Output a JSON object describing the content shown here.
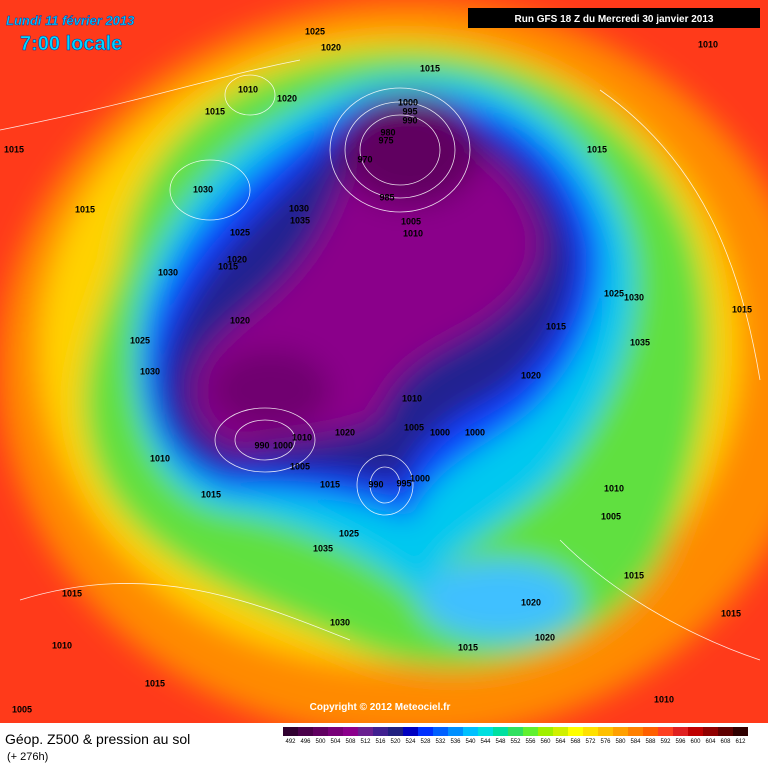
{
  "header": {
    "date": "Lundi 11 février 2013",
    "time": "7:00 locale",
    "run": "Run GFS 18 Z du Mercredi 30 janvier 2013"
  },
  "isobars": [
    1025,
    1020,
    1010,
    1015,
    1010,
    1020,
    1015,
    1000,
    995,
    990,
    980,
    975,
    970,
    1015,
    1015,
    1030,
    985,
    1030,
    1015,
    1005,
    1035,
    1010,
    1025,
    1020,
    1015,
    1030,
    1025,
    1030,
    1015,
    1020,
    1015,
    1025,
    1035,
    1030,
    1020,
    1010,
    1005,
    1000,
    1000,
    1020,
    990,
    1000,
    1010,
    1005,
    1010,
    1015,
    990,
    995,
    1000,
    1015,
    1010,
    1005,
    1025,
    1035,
    1015,
    1015,
    1030,
    1020,
    1015,
    1020,
    1015,
    1010,
    1015,
    1010,
    1005
  ],
  "copyright": "Copyright © 2012 Meteociel.fr",
  "footer": {
    "title": "Géop. Z500 & pression au sol",
    "lead": "(+ 276h)"
  },
  "scale": [
    492,
    496,
    500,
    504,
    508,
    512,
    516,
    520,
    524,
    528,
    532,
    536,
    540,
    544,
    548,
    552,
    556,
    560,
    564,
    568,
    572,
    576,
    580,
    584,
    588,
    592,
    596,
    600,
    604,
    608,
    612
  ]
}
